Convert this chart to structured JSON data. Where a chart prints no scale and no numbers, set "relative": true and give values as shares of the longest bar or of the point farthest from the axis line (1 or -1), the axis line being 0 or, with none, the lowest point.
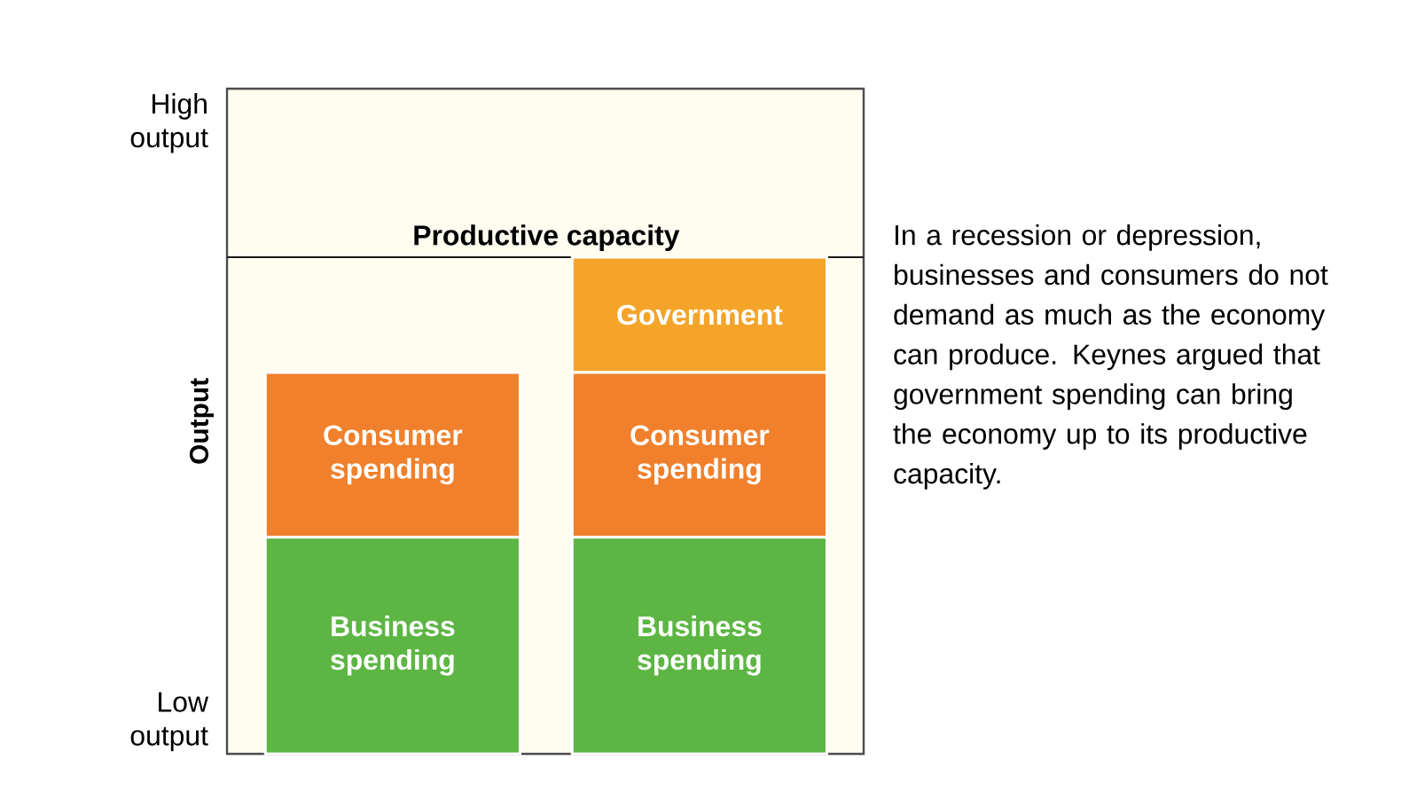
{
  "chart_data": {
    "type": "bar",
    "stacked": true,
    "relative": true,
    "ylabel": "Output",
    "categories": [
      null,
      null
    ],
    "series": [
      {
        "name": "Business spending",
        "color": "#5db644",
        "values": [
          0.436,
          0.436
        ]
      },
      {
        "name": "Consumer spending",
        "color": "#f0802c",
        "values": [
          0.332,
          0.332
        ]
      },
      {
        "name": "Government",
        "color": "#f5a42a",
        "values": [
          null,
          0.232
        ]
      }
    ],
    "ref_lines": [
      {
        "axis": "y",
        "value": 1.0,
        "label": "Productive capacity",
        "color": "#1a1a1a"
      }
    ],
    "annotations": [
      "High output",
      "Low output",
      "In a recession or depression, businesses and consumers do not demand as much as the economy can produce. Keynes argued that government spending can bring the economy up to its productive capacity."
    ]
  }
}
